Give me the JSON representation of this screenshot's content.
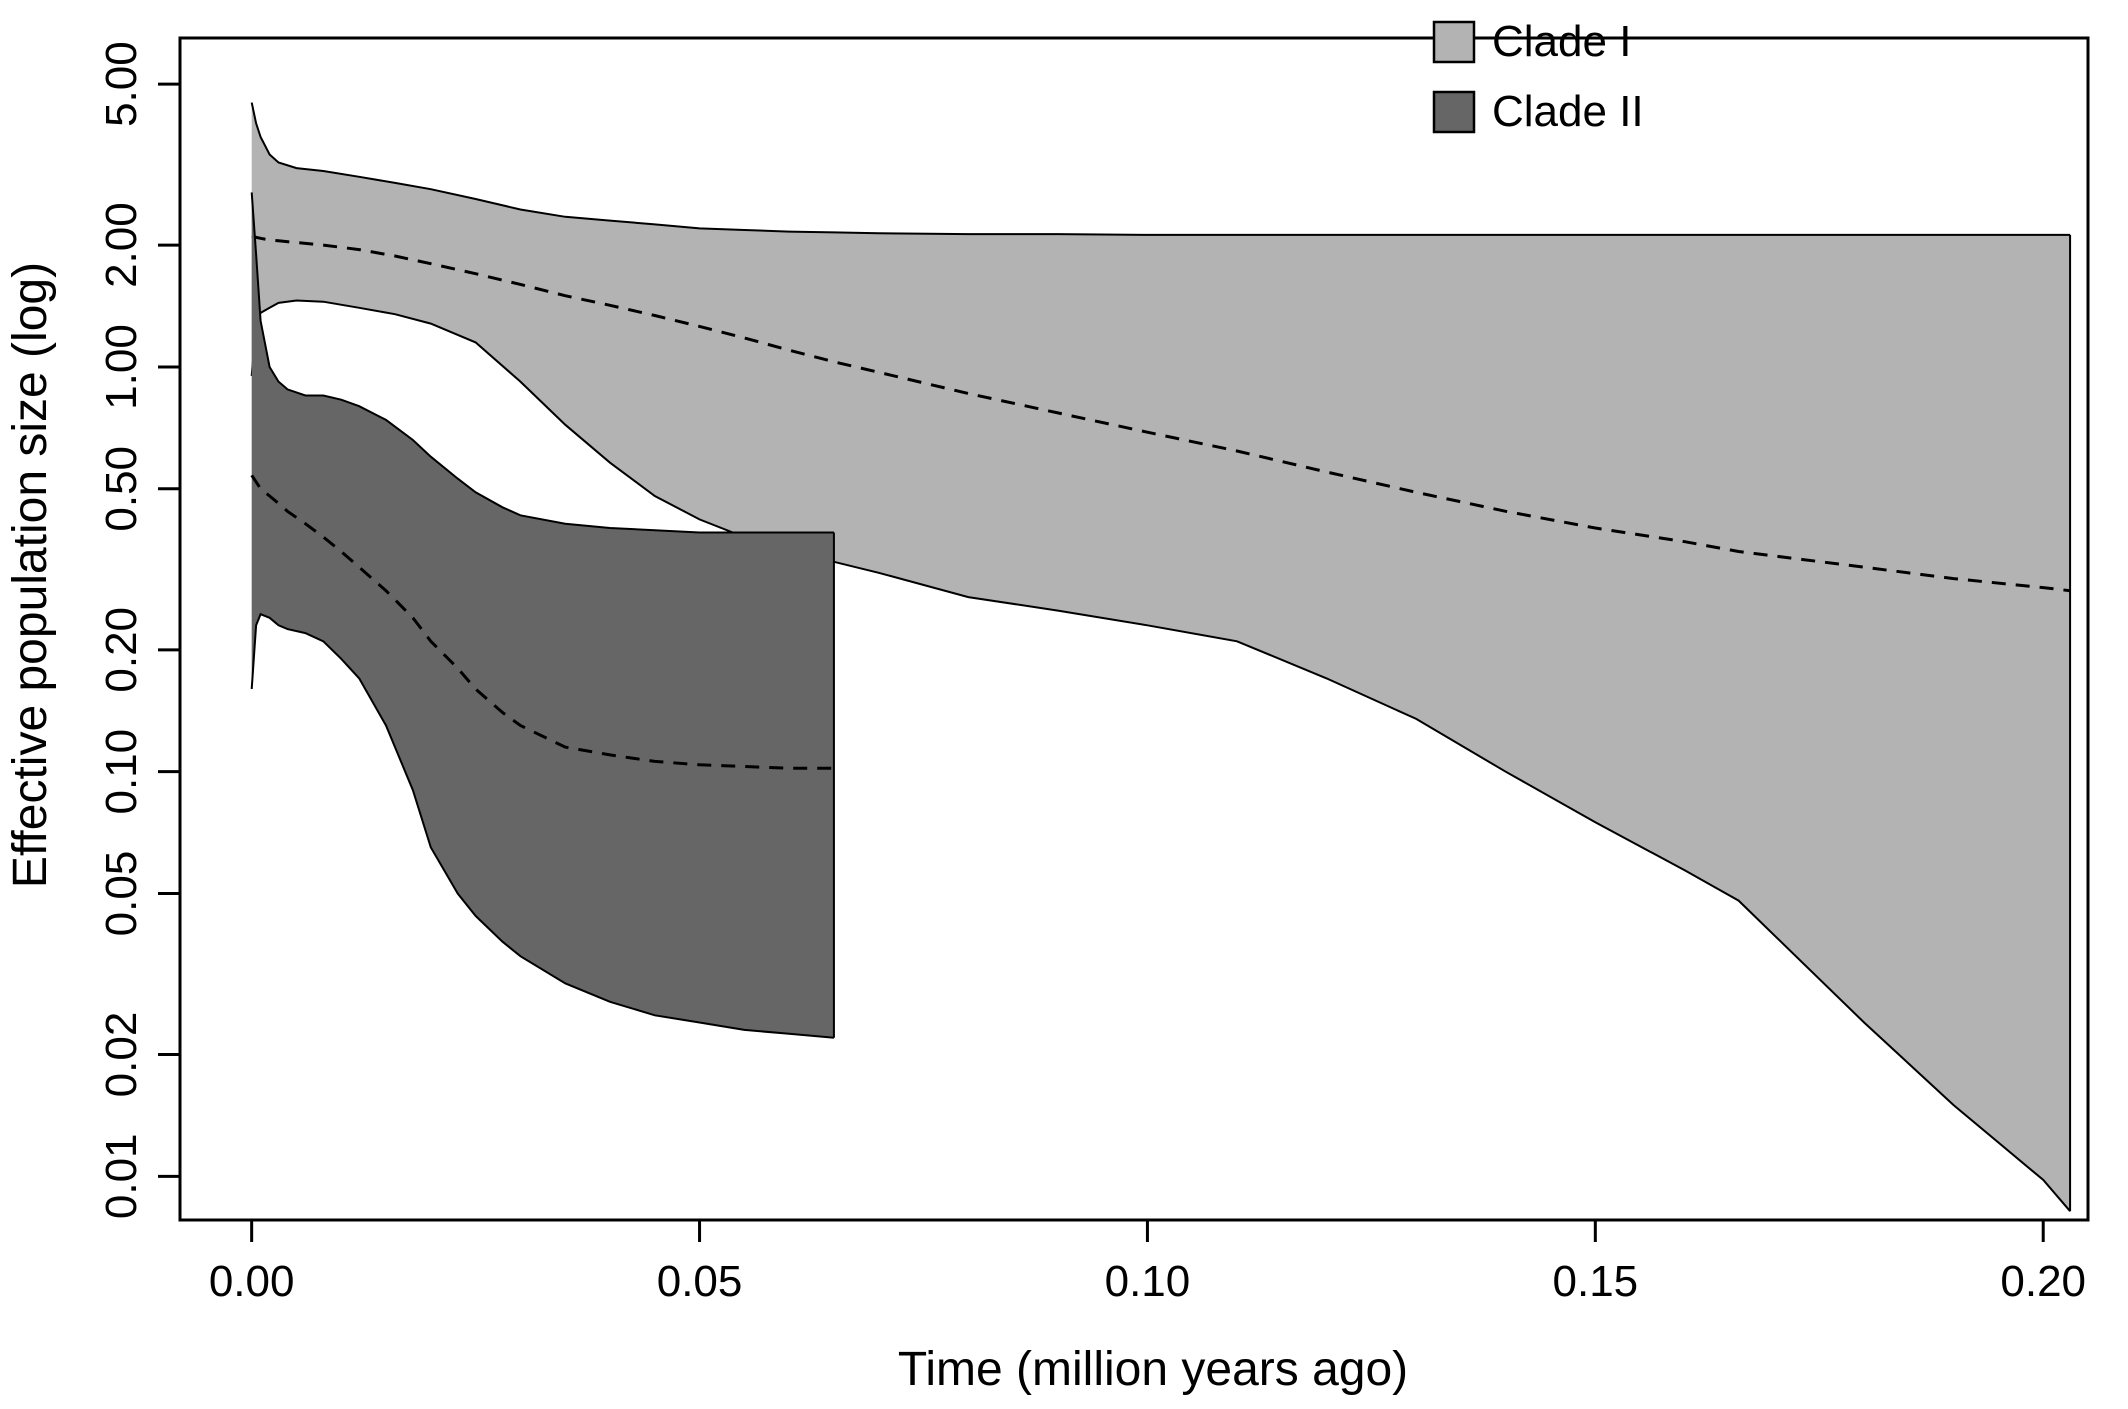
{
  "chart_data": {
    "type": "area",
    "title": "",
    "xlabel": "Time (million years ago)",
    "ylabel": "Effective population size (log)",
    "y_scale": "log",
    "xlim": [
      -0.008,
      0.205
    ],
    "ylim": [
      0.0078,
      6.5
    ],
    "x_ticks": [
      0.0,
      0.05,
      0.1,
      0.15,
      0.2
    ],
    "x_tick_labels": [
      "0.00",
      "0.05",
      "0.10",
      "0.15",
      "0.20"
    ],
    "y_ticks": [
      0.01,
      0.02,
      0.05,
      0.1,
      0.2,
      0.5,
      1.0,
      2.0,
      5.0
    ],
    "y_tick_labels": [
      "0.01",
      "0.02",
      "0.05",
      "0.10",
      "0.20",
      "0.50",
      "1.00",
      "2.00",
      "5.00"
    ],
    "grid": false,
    "legend_position": "top-right",
    "series": [
      {
        "name": "Clade I",
        "fill": "#b3b3b3",
        "x": [
          0.0,
          0.0005,
          0.001,
          0.002,
          0.003,
          0.005,
          0.008,
          0.012,
          0.016,
          0.02,
          0.025,
          0.03,
          0.035,
          0.04,
          0.045,
          0.05,
          0.055,
          0.06,
          0.065,
          0.07,
          0.08,
          0.09,
          0.1,
          0.11,
          0.12,
          0.13,
          0.14,
          0.15,
          0.16,
          0.166,
          0.18,
          0.19,
          0.2,
          0.203
        ],
        "upper": [
          4.5,
          4.0,
          3.7,
          3.35,
          3.2,
          3.1,
          3.05,
          2.95,
          2.85,
          2.75,
          2.6,
          2.45,
          2.35,
          2.3,
          2.25,
          2.2,
          2.18,
          2.16,
          2.15,
          2.14,
          2.13,
          2.13,
          2.12,
          2.12,
          2.12,
          2.12,
          2.12,
          2.12,
          2.12,
          2.12,
          2.12,
          2.12,
          2.12,
          2.12
        ],
        "lower": [
          0.95,
          1.3,
          1.36,
          1.4,
          1.44,
          1.46,
          1.45,
          1.4,
          1.35,
          1.28,
          1.15,
          0.92,
          0.72,
          0.58,
          0.48,
          0.42,
          0.38,
          0.35,
          0.33,
          0.31,
          0.27,
          0.25,
          0.23,
          0.21,
          0.17,
          0.135,
          0.1,
          0.075,
          0.057,
          0.048,
          0.024,
          0.015,
          0.0098,
          0.0082
        ],
        "median": [
          2.1,
          2.09,
          2.08,
          2.06,
          2.05,
          2.03,
          2.0,
          1.95,
          1.88,
          1.8,
          1.7,
          1.6,
          1.5,
          1.42,
          1.34,
          1.26,
          1.18,
          1.1,
          1.03,
          0.97,
          0.86,
          0.77,
          0.69,
          0.62,
          0.55,
          0.49,
          0.44,
          0.4,
          0.37,
          0.35,
          0.32,
          0.3,
          0.285,
          0.28
        ]
      },
      {
        "name": "Clade II",
        "fill": "#666666",
        "x": [
          0.0,
          0.0005,
          0.001,
          0.002,
          0.003,
          0.004,
          0.006,
          0.008,
          0.01,
          0.012,
          0.015,
          0.018,
          0.02,
          0.023,
          0.025,
          0.028,
          0.03,
          0.035,
          0.04,
          0.045,
          0.05,
          0.055,
          0.06,
          0.065
        ],
        "upper": [
          2.7,
          1.9,
          1.3,
          1.0,
          0.92,
          0.88,
          0.85,
          0.85,
          0.83,
          0.8,
          0.74,
          0.66,
          0.6,
          0.53,
          0.49,
          0.45,
          0.43,
          0.41,
          0.4,
          0.395,
          0.39,
          0.39,
          0.39,
          0.39
        ],
        "lower": [
          0.16,
          0.23,
          0.245,
          0.24,
          0.23,
          0.225,
          0.22,
          0.21,
          0.19,
          0.17,
          0.13,
          0.09,
          0.065,
          0.05,
          0.044,
          0.038,
          0.035,
          0.03,
          0.027,
          0.025,
          0.024,
          0.023,
          0.0225,
          0.022
        ],
        "median": [
          0.54,
          0.52,
          0.5,
          0.48,
          0.46,
          0.44,
          0.41,
          0.38,
          0.35,
          0.32,
          0.28,
          0.24,
          0.21,
          0.18,
          0.16,
          0.14,
          0.13,
          0.115,
          0.11,
          0.106,
          0.104,
          0.103,
          0.102,
          0.102
        ]
      }
    ]
  }
}
